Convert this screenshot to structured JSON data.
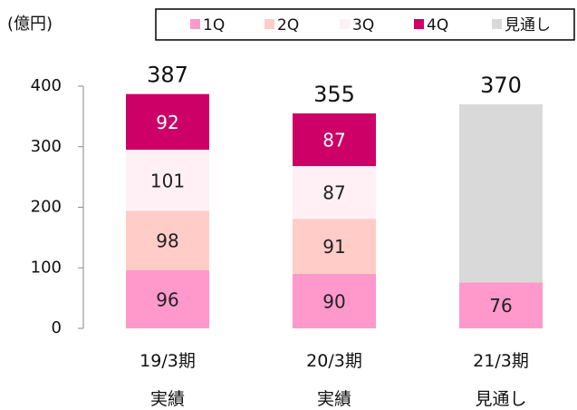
{
  "chart_data": {
    "type": "stacked_bar",
    "unit_label": "(億円)",
    "categories": [
      "19/3期\n実績",
      "20/3期\n実績",
      "21/3期\n見通し"
    ],
    "series": [
      {
        "name": "1Q",
        "color": "#ff99cc",
        "values": [
          96,
          90,
          76
        ]
      },
      {
        "name": "2Q",
        "color": "#ffccc8",
        "values": [
          98,
          91,
          null
        ]
      },
      {
        "name": "3Q",
        "color": "#fff0f5",
        "values": [
          101,
          87,
          null
        ]
      },
      {
        "name": "4Q",
        "color": "#cc0066",
        "values": [
          92,
          87,
          null
        ]
      },
      {
        "name": "見通し",
        "color": "#d9d9d9",
        "values": [
          null,
          null,
          294
        ]
      }
    ],
    "totals": [
      387,
      355,
      370
    ],
    "ylim": [
      0,
      400
    ],
    "yticks": [
      0,
      100,
      200,
      300,
      400
    ],
    "legend": "top"
  }
}
